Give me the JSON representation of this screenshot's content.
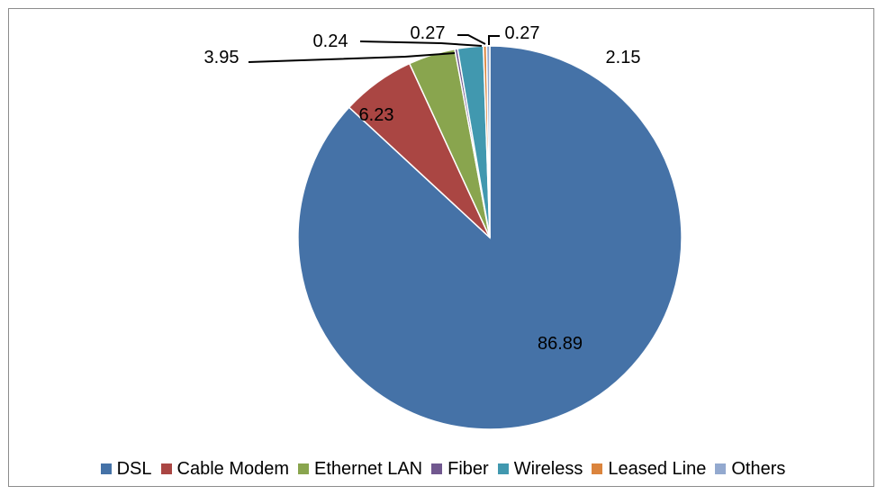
{
  "chart_data": {
    "type": "pie",
    "title": "",
    "legend_placement": "bottom",
    "slices": [
      {
        "name": "DSL",
        "value": 86.89,
        "label": "86.89",
        "color": "#4572A7"
      },
      {
        "name": "Cable Modem",
        "value": 6.23,
        "label": "6.23",
        "color": "#AA4643"
      },
      {
        "name": "Ethernet LAN",
        "value": 3.95,
        "label": "3.95",
        "color": "#89A54E"
      },
      {
        "name": "Fiber",
        "value": 0.24,
        "label": "0.24",
        "color": "#71588F"
      },
      {
        "name": "Wireless",
        "value": 2.15,
        "label": "2.15",
        "color": "#4198AF"
      },
      {
        "name": "Leased Line",
        "value": 0.27,
        "label": "0.27",
        "color": "#DB843D"
      },
      {
        "name": "Others",
        "value": 0.27,
        "label": "0.27",
        "color": "#93A9CF"
      }
    ]
  }
}
